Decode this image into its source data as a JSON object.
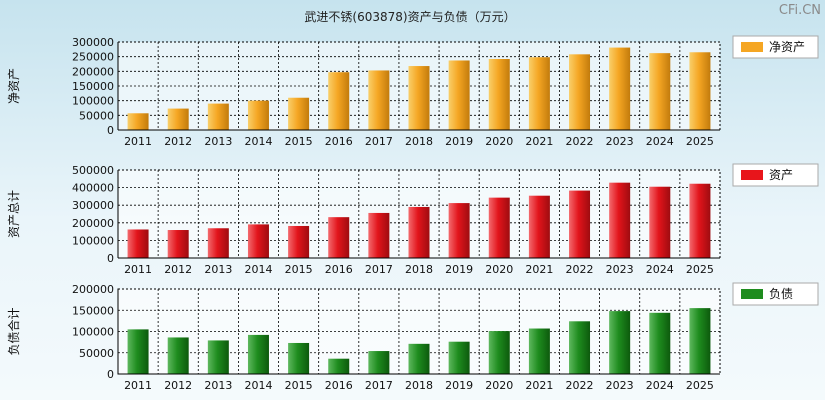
{
  "watermark": "CFi.CN",
  "chart_data": [
    {
      "type": "bar",
      "title": "武进不锈(603878)资产与负债（万元）",
      "categories": [
        "2011",
        "2012",
        "2013",
        "2014",
        "2015",
        "2016",
        "2017",
        "2018",
        "2019",
        "2020",
        "2021",
        "2022",
        "2023",
        "2024",
        "2025"
      ],
      "ylabel": "净资产",
      "legend": "净资产",
      "legend_position": "right",
      "color": "#f5a623",
      "ylim": [
        0,
        300000
      ],
      "yticks": [
        0,
        50000,
        100000,
        150000,
        200000,
        250000,
        300000
      ],
      "grid": true,
      "series": [
        {
          "name": "净资产",
          "values": [
            57000,
            73000,
            90000,
            100000,
            110000,
            197000,
            203000,
            218000,
            237000,
            242000,
            248000,
            258000,
            281000,
            262000,
            265000
          ]
        }
      ]
    },
    {
      "type": "bar",
      "categories": [
        "2011",
        "2012",
        "2013",
        "2014",
        "2015",
        "2016",
        "2017",
        "2018",
        "2019",
        "2020",
        "2021",
        "2022",
        "2023",
        "2024",
        "2025"
      ],
      "ylabel": "资产总计",
      "legend": "资产",
      "legend_position": "right",
      "color": "#e8151b",
      "ylim": [
        0,
        500000
      ],
      "yticks": [
        0,
        100000,
        200000,
        300000,
        400000,
        500000
      ],
      "grid": true,
      "series": [
        {
          "name": "资产",
          "values": [
            162000,
            159000,
            169000,
            191000,
            182000,
            232000,
            256000,
            290000,
            312000,
            343000,
            354000,
            383000,
            428000,
            405000,
            422000
          ]
        }
      ]
    },
    {
      "type": "bar",
      "categories": [
        "2011",
        "2012",
        "2013",
        "2014",
        "2015",
        "2016",
        "2017",
        "2018",
        "2019",
        "2020",
        "2021",
        "2022",
        "2023",
        "2024",
        "2025"
      ],
      "ylabel": "负债合计",
      "legend": "负债",
      "legend_position": "right",
      "color": "#1e8c1e",
      "ylim": [
        0,
        200000
      ],
      "yticks": [
        0,
        50000,
        100000,
        150000,
        200000
      ],
      "grid": true,
      "series": [
        {
          "name": "负债",
          "values": [
            105000,
            86000,
            79000,
            92000,
            73000,
            36000,
            54000,
            71000,
            76000,
            101000,
            107000,
            124000,
            148000,
            144000,
            155000
          ]
        }
      ]
    }
  ]
}
